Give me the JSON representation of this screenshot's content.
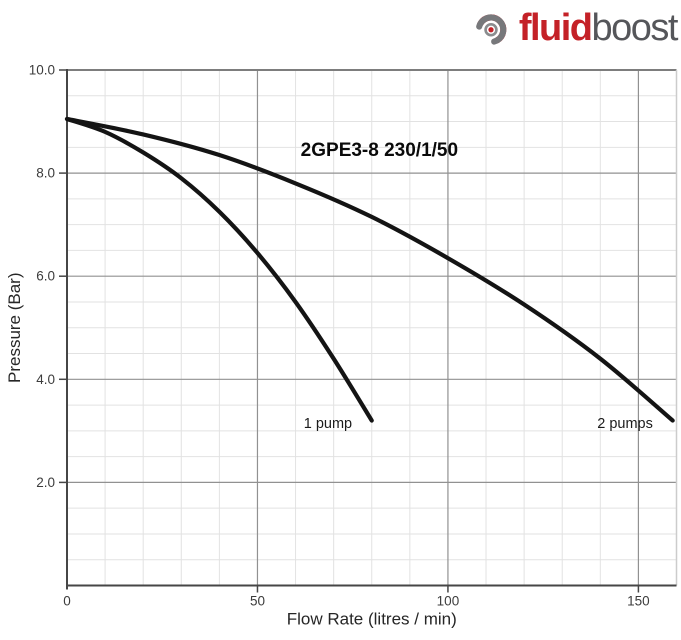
{
  "logo": {
    "brand_first": "fluid",
    "brand_second": "boost",
    "icon": "fluidboost-swirl-icon",
    "red": "#c42127",
    "gray": "#55565a"
  },
  "chart_data": {
    "type": "line",
    "title": "2GPE3-8 230/1/50",
    "xlabel": "Flow Rate (litres / min)",
    "ylabel": "Pressure (Bar)",
    "xlim": [
      0,
      160
    ],
    "ylim": [
      0,
      10
    ],
    "grid": true,
    "legend_position": "inline-labels",
    "x_ticks": [
      {
        "value": 0,
        "label": "0"
      },
      {
        "value": 50,
        "label": "50"
      },
      {
        "value": 100,
        "label": "100"
      },
      {
        "value": 150,
        "label": "150"
      }
    ],
    "y_ticks": [
      {
        "value": 10,
        "label": "10.0"
      },
      {
        "value": 8,
        "label": "8.0"
      },
      {
        "value": 6,
        "label": "6.0"
      },
      {
        "value": 4,
        "label": "4.0"
      },
      {
        "value": 2,
        "label": "2.0"
      }
    ],
    "x_minor_step": 10,
    "y_minor_step": 0.5,
    "x_major_grid": [
      50,
      100,
      150
    ],
    "y_major_grid": [
      2,
      4,
      6,
      8
    ],
    "line_color": "#141414",
    "colors": {
      "grid_minor": "#e2e2e2",
      "grid_major": "#919191",
      "axis": "#464646",
      "top_border": "#7d7d7d",
      "right_border": "#cccccc"
    },
    "title_pos": {
      "x": 82,
      "y": 8.45
    },
    "series": [
      {
        "name": "1 pump",
        "label": {
          "text": "1 pump",
          "x": 68.5,
          "y": 3.15
        },
        "points": [
          [
            0,
            9.05
          ],
          [
            10,
            8.8
          ],
          [
            20,
            8.4
          ],
          [
            30,
            7.9
          ],
          [
            40,
            7.25
          ],
          [
            50,
            6.45
          ],
          [
            60,
            5.5
          ],
          [
            70,
            4.4
          ],
          [
            80,
            3.2
          ]
        ]
      },
      {
        "name": "2 pumps",
        "label": {
          "text": "2 pumps",
          "x": 146.5,
          "y": 3.15
        },
        "points": [
          [
            0,
            9.05
          ],
          [
            20,
            8.75
          ],
          [
            40,
            8.35
          ],
          [
            60,
            7.8
          ],
          [
            80,
            7.15
          ],
          [
            100,
            6.35
          ],
          [
            120,
            5.45
          ],
          [
            140,
            4.4
          ],
          [
            159,
            3.2
          ]
        ]
      }
    ]
  }
}
